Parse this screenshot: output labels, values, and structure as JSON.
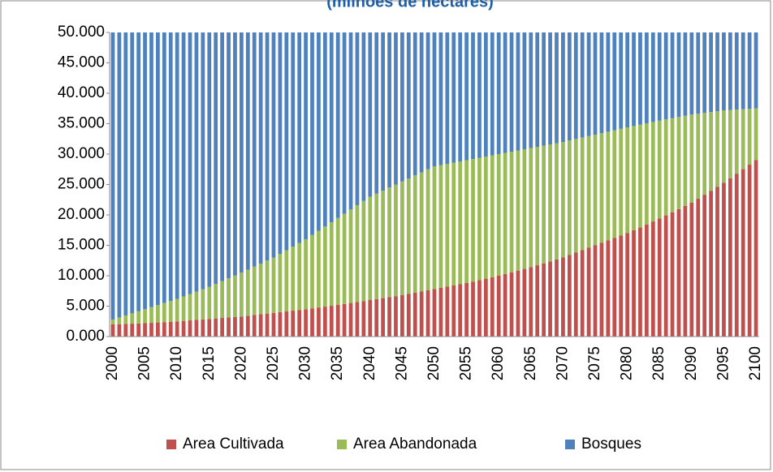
{
  "chart_data": {
    "type": "stacked_bar",
    "title": "(milhões de hectares)",
    "categories": [
      "2000",
      null,
      null,
      null,
      null,
      "2005",
      null,
      null,
      null,
      null,
      "2010",
      null,
      null,
      null,
      null,
      "2015",
      null,
      null,
      null,
      null,
      "2020",
      null,
      null,
      null,
      null,
      "2025",
      null,
      null,
      null,
      null,
      "2030",
      null,
      null,
      null,
      null,
      "2035",
      null,
      null,
      null,
      null,
      "2040",
      null,
      null,
      null,
      null,
      "2045",
      null,
      null,
      null,
      null,
      "2050",
      null,
      null,
      null,
      null,
      "2055",
      null,
      null,
      null,
      null,
      "2060",
      null,
      null,
      null,
      null,
      "2065",
      null,
      null,
      null,
      null,
      "2070",
      null,
      null,
      null,
      null,
      "2075",
      null,
      null,
      null,
      null,
      "2080",
      null,
      null,
      null,
      null,
      "2085",
      null,
      null,
      null,
      null,
      "2090",
      null,
      null,
      null,
      null,
      "2095",
      null,
      null,
      null,
      null,
      "2100"
    ],
    "series": [
      {
        "name": "Area Cultivada",
        "color": "#c0504d",
        "values": [
          2000,
          2040,
          2080,
          2120,
          2160,
          2200,
          2260,
          2320,
          2380,
          2440,
          2500,
          2580,
          2660,
          2740,
          2820,
          2900,
          2980,
          3060,
          3140,
          3220,
          3300,
          3420,
          3540,
          3660,
          3780,
          3900,
          4020,
          4140,
          4260,
          4380,
          4500,
          4640,
          4780,
          4920,
          5060,
          5200,
          5360,
          5520,
          5680,
          5840,
          6000,
          6160,
          6320,
          6480,
          6640,
          6800,
          7000,
          7200,
          7400,
          7600,
          7800,
          8000,
          8200,
          8400,
          8600,
          8800,
          9040,
          9280,
          9520,
          9760,
          10000,
          10280,
          10560,
          10840,
          11120,
          11400,
          11720,
          12040,
          12360,
          12680,
          13000,
          13400,
          13800,
          14200,
          14600,
          15000,
          15400,
          15800,
          16200,
          16600,
          17000,
          17480,
          17960,
          18440,
          18920,
          19400,
          19920,
          20440,
          20960,
          21480,
          22000,
          22660,
          23320,
          23980,
          24640,
          25300,
          26040,
          26780,
          27520,
          28260,
          29000
        ]
      },
      {
        "name": "Area Abandonada",
        "color": "#9bbb59",
        "values": [
          800,
          1100,
          1400,
          1700,
          2000,
          2300,
          2580,
          2860,
          3140,
          3420,
          3700,
          4020,
          4340,
          4660,
          4980,
          5300,
          5680,
          6060,
          6440,
          6820,
          7200,
          7580,
          7960,
          8340,
          8720,
          9100,
          9580,
          10060,
          10540,
          11020,
          11500,
          12060,
          12620,
          13180,
          13740,
          14300,
          14840,
          15380,
          15920,
          16460,
          17000,
          17340,
          17680,
          18020,
          18360,
          18700,
          19000,
          19300,
          19600,
          19900,
          20200,
          20200,
          20200,
          20200,
          20200,
          20200,
          20160,
          20120,
          20080,
          20040,
          20000,
          19920,
          19840,
          19760,
          19680,
          19600,
          19480,
          19360,
          19240,
          19120,
          19000,
          18840,
          18680,
          18520,
          18360,
          18200,
          18040,
          17880,
          17720,
          17560,
          17400,
          17140,
          16880,
          16620,
          16360,
          16100,
          15780,
          15460,
          15140,
          14820,
          14500,
          13980,
          13460,
          12940,
          12420,
          11900,
          11220,
          10540,
          9860,
          9180,
          8500
        ]
      },
      {
        "name": "Bosques",
        "color": "#4f81bd",
        "values": [
          47200,
          46860,
          46520,
          46180,
          45840,
          45500,
          45160,
          44820,
          44480,
          44140,
          43800,
          43400,
          43000,
          42600,
          42200,
          41800,
          41340,
          40880,
          40420,
          39960,
          39500,
          39000,
          38500,
          38000,
          37500,
          37000,
          36400,
          35800,
          35200,
          34600,
          34000,
          33300,
          32600,
          31900,
          31200,
          30500,
          29800,
          29100,
          28400,
          27700,
          27000,
          26500,
          26000,
          25500,
          25000,
          24500,
          24000,
          23500,
          23000,
          22500,
          22000,
          21800,
          21600,
          21400,
          21200,
          21000,
          20800,
          20600,
          20400,
          20200,
          20000,
          19800,
          19600,
          19400,
          19200,
          19000,
          18800,
          18600,
          18400,
          18200,
          18000,
          17760,
          17520,
          17280,
          17040,
          16800,
          16560,
          16320,
          16080,
          15840,
          15600,
          15380,
          15160,
          14940,
          14720,
          14500,
          14300,
          14100,
          13900,
          13700,
          13500,
          13360,
          13220,
          13080,
          12940,
          12800,
          12740,
          12680,
          12620,
          12560,
          12500
        ]
      }
    ],
    "ylim": [
      0,
      50000
    ],
    "yticks": [
      {
        "value": 0,
        "label": "0.000"
      },
      {
        "value": 5000,
        "label": "5.000"
      },
      {
        "value": 10000,
        "label": "10.000"
      },
      {
        "value": 15000,
        "label": "15.000"
      },
      {
        "value": 20000,
        "label": "20.000"
      },
      {
        "value": 25000,
        "label": "25.000"
      },
      {
        "value": 30000,
        "label": "30.000"
      },
      {
        "value": 35000,
        "label": "35.000"
      },
      {
        "value": 40000,
        "label": "40.000"
      },
      {
        "value": 45000,
        "label": "45.000"
      },
      {
        "value": 50000,
        "label": "50.000"
      }
    ],
    "legend": "bottom"
  }
}
